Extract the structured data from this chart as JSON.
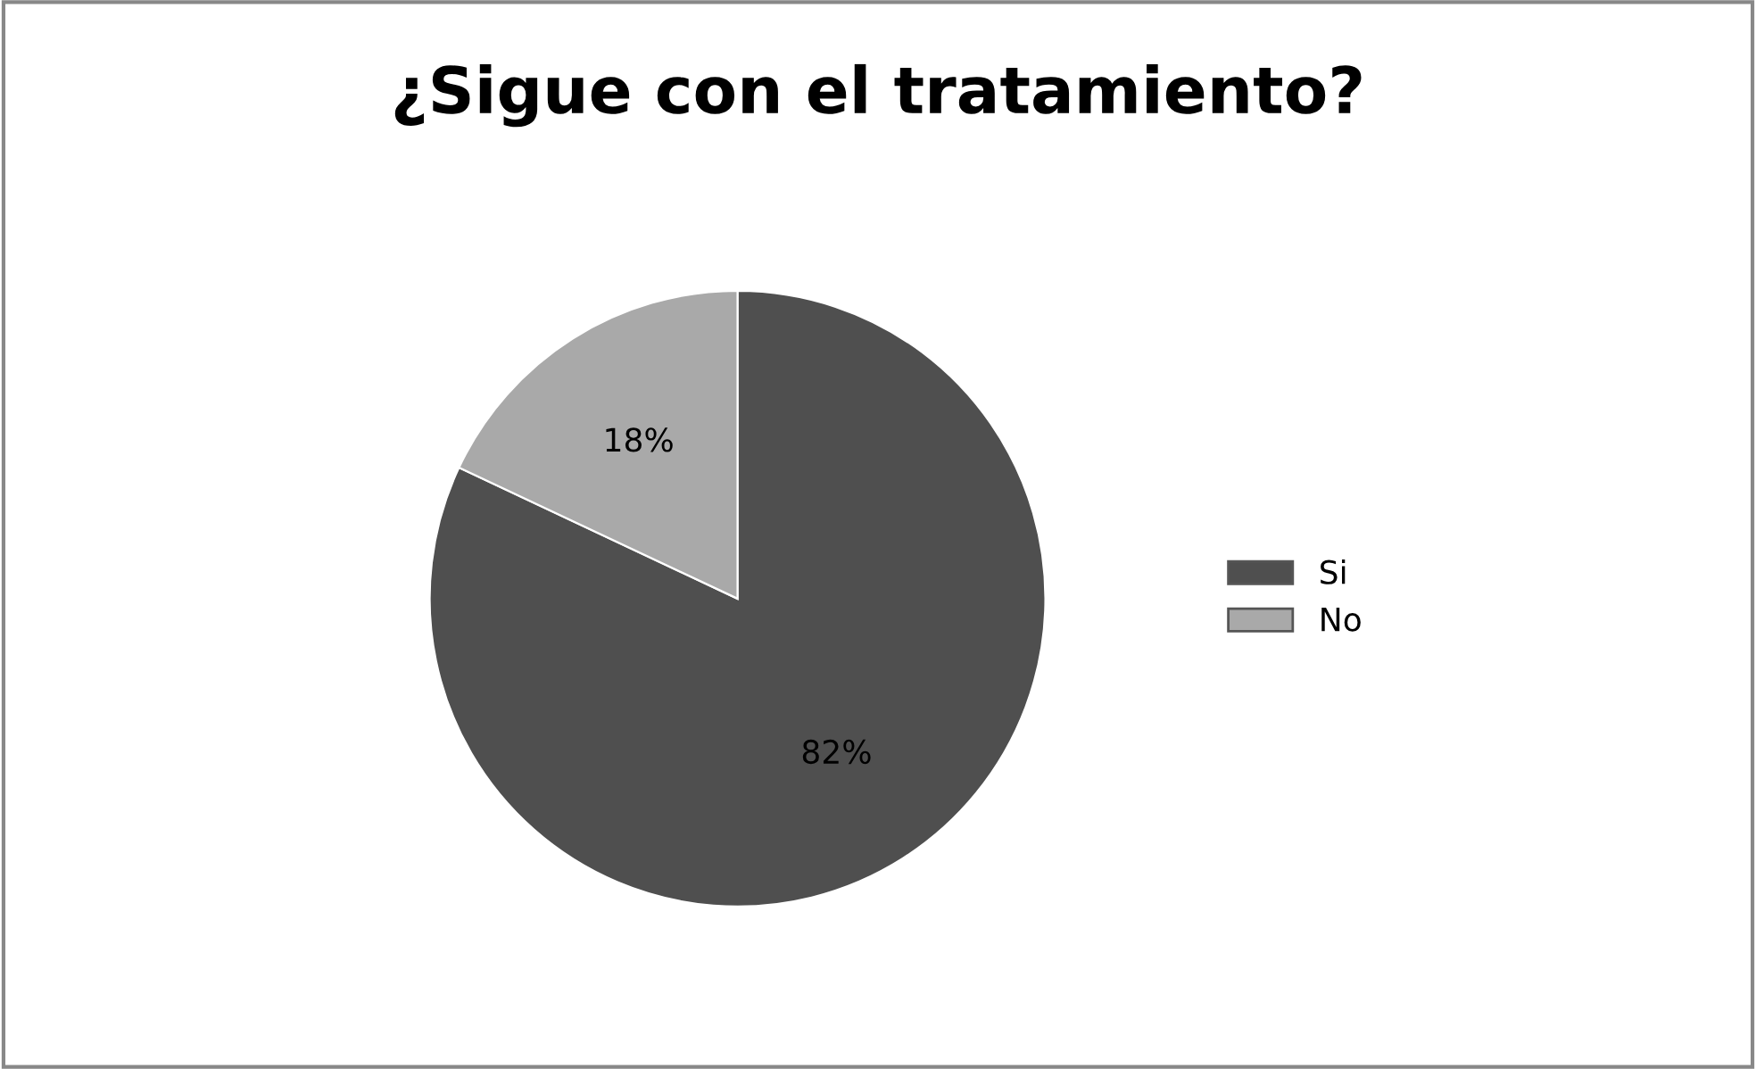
{
  "chart_data": {
    "type": "pie",
    "title": "¿Sigue con el tratamiento?",
    "categories": [
      "Si",
      "No"
    ],
    "values": [
      82,
      18
    ],
    "colors": [
      "#4f4f4f",
      "#a9a9a9"
    ],
    "value_labels": [
      "82%",
      "18%"
    ],
    "legend": "right"
  }
}
